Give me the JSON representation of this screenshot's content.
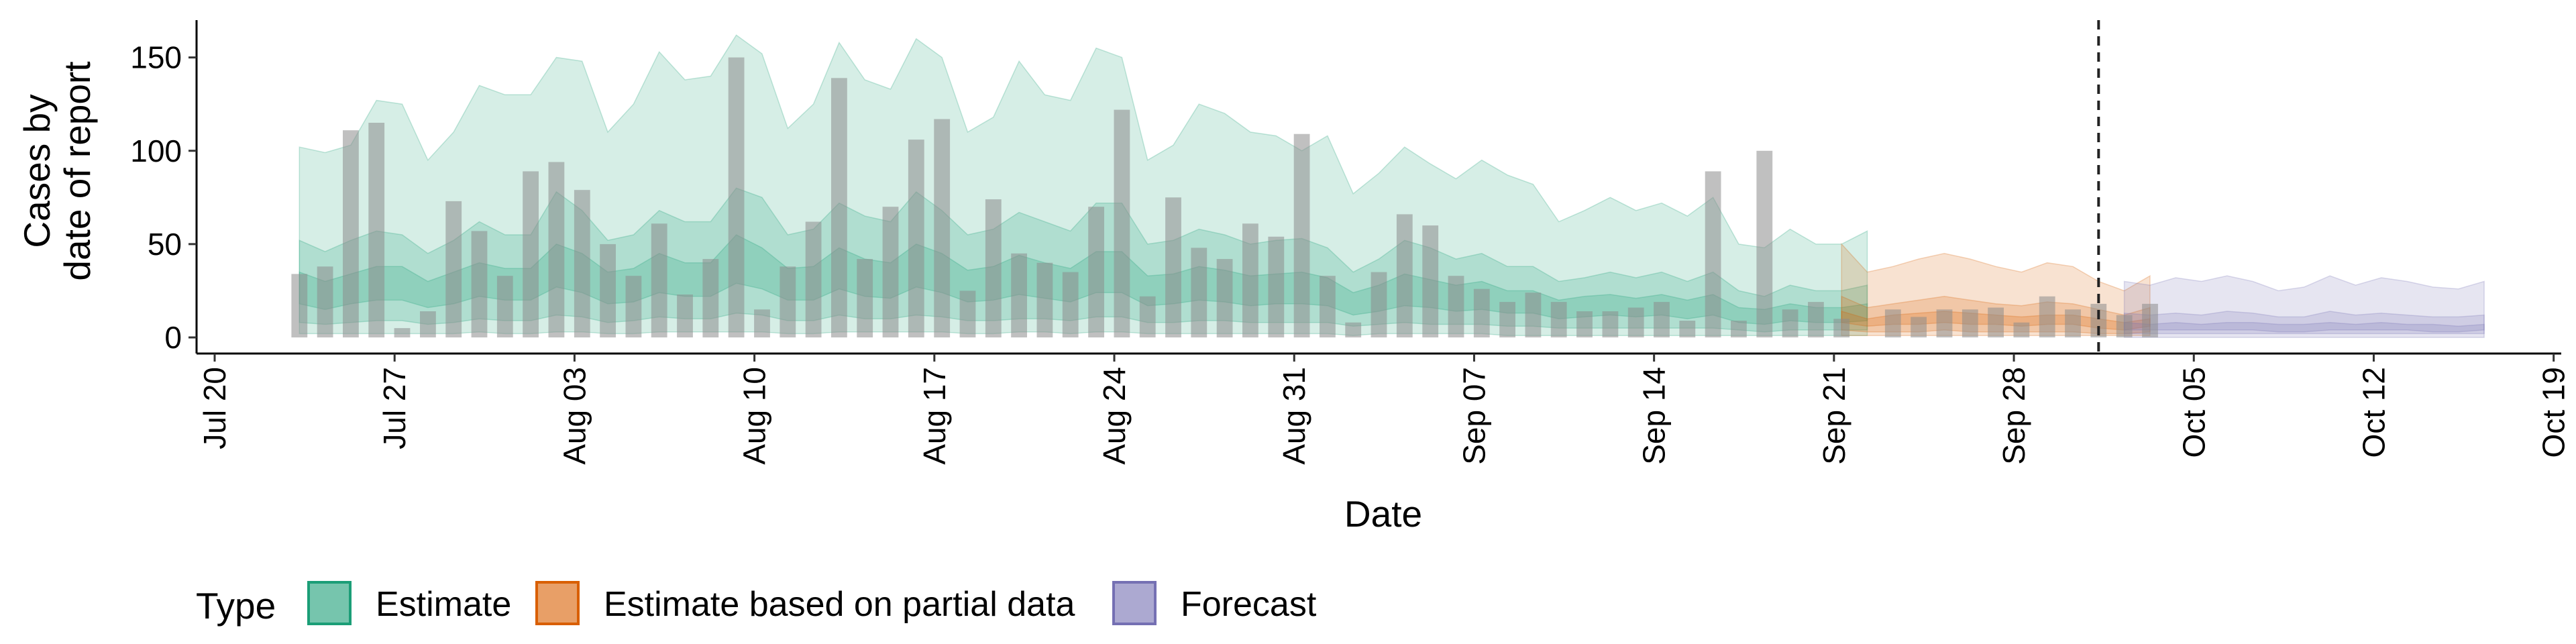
{
  "chart_data": {
    "type": "area",
    "xlabel": "Date",
    "ylabel_lines": [
      "Cases by",
      "date of report"
    ],
    "ylim": [
      0,
      170
    ],
    "y_ticks": [
      0,
      50,
      100,
      150
    ],
    "x_ticks": [
      "Jul 20",
      "Jul 27",
      "Aug 03",
      "Aug 10",
      "Aug 17",
      "Aug 24",
      "Aug 31",
      "Sep 07",
      "Sep 14",
      "Sep 21",
      "Sep 28",
      "Oct 05",
      "Oct 12",
      "Oct 19"
    ],
    "x_start": "2020-07-20",
    "x_end": "2020-10-20",
    "bar_dates_start": "2020-07-24",
    "bars": [
      34,
      38,
      111,
      115,
      5,
      14,
      73,
      57,
      33,
      89,
      94,
      79,
      50,
      33,
      61,
      23,
      42,
      150,
      15,
      38,
      62,
      139,
      42,
      70,
      106,
      117,
      25,
      74,
      45,
      40,
      35,
      70,
      122,
      22,
      75,
      48,
      42,
      61,
      54,
      109,
      33,
      8,
      35,
      66,
      60,
      33,
      26,
      19,
      24,
      19,
      14,
      14,
      16,
      19,
      9,
      89,
      9,
      100,
      15,
      19,
      10,
      0,
      15,
      11,
      15,
      15,
      16,
      8,
      22,
      15,
      18,
      12,
      18
    ],
    "vline_date": "2020-10-02",
    "bands": [
      {
        "type": "Estimate",
        "start": "2020-07-24",
        "upper90": [
          102,
          99,
          103,
          127,
          125,
          95,
          110,
          135,
          130,
          130,
          150,
          148,
          110,
          125,
          153,
          138,
          140,
          162,
          152,
          112,
          125,
          158,
          138,
          133,
          160,
          150,
          110,
          118,
          148,
          130,
          127,
          155,
          150,
          95,
          103,
          125,
          120,
          110,
          108,
          100,
          108,
          77,
          88,
          102,
          93,
          85,
          95,
          87,
          82,
          62,
          68,
          75,
          68,
          72,
          65,
          75,
          50,
          48,
          58,
          50,
          50,
          57
        ],
        "upper50": [
          52,
          46,
          52,
          57,
          55,
          45,
          52,
          62,
          55,
          55,
          78,
          68,
          52,
          55,
          68,
          62,
          62,
          80,
          75,
          55,
          58,
          72,
          65,
          62,
          78,
          68,
          55,
          58,
          67,
          62,
          57,
          72,
          72,
          50,
          52,
          58,
          55,
          50,
          52,
          53,
          48,
          35,
          42,
          52,
          48,
          42,
          45,
          38,
          38,
          30,
          32,
          35,
          32,
          35,
          30,
          35,
          25,
          22,
          28,
          25,
          25,
          28
        ],
        "upper20": [
          35,
          30,
          34,
          38,
          38,
          30,
          35,
          40,
          37,
          37,
          50,
          45,
          35,
          37,
          45,
          40,
          40,
          55,
          48,
          37,
          38,
          48,
          42,
          40,
          50,
          45,
          36,
          38,
          44,
          40,
          37,
          46,
          46,
          33,
          34,
          38,
          36,
          33,
          34,
          35,
          32,
          24,
          28,
          34,
          31,
          28,
          30,
          25,
          25,
          20,
          22,
          23,
          21,
          23,
          20,
          23,
          16,
          15,
          18,
          16,
          16,
          18
        ],
        "lower20": [
          18,
          15,
          18,
          20,
          20,
          16,
          18,
          22,
          20,
          20,
          27,
          24,
          18,
          19,
          24,
          22,
          22,
          29,
          26,
          20,
          20,
          26,
          22,
          21,
          27,
          24,
          19,
          20,
          23,
          21,
          19,
          24,
          24,
          17,
          18,
          20,
          19,
          17,
          18,
          18,
          17,
          12,
          14,
          17,
          16,
          14,
          15,
          13,
          13,
          10,
          11,
          12,
          11,
          12,
          10,
          12,
          8,
          7,
          9,
          8,
          8,
          9
        ],
        "lower50": [
          8,
          7,
          8,
          9,
          9,
          7,
          8,
          10,
          9,
          9,
          12,
          11,
          8,
          9,
          11,
          10,
          10,
          13,
          12,
          9,
          9,
          12,
          10,
          10,
          12,
          11,
          9,
          9,
          10,
          10,
          9,
          11,
          11,
          8,
          8,
          9,
          9,
          8,
          8,
          8,
          8,
          6,
          7,
          8,
          7,
          7,
          7,
          6,
          6,
          5,
          5,
          5,
          5,
          5,
          5,
          5,
          4,
          3,
          4,
          4,
          4,
          4
        ],
        "lower90": [
          2,
          2,
          2,
          2,
          2,
          2,
          2,
          3,
          2,
          2,
          3,
          3,
          2,
          2,
          3,
          3,
          3,
          3,
          3,
          2,
          2,
          3,
          3,
          3,
          3,
          3,
          2,
          2,
          3,
          3,
          2,
          3,
          3,
          2,
          2,
          2,
          2,
          2,
          2,
          2,
          2,
          1,
          2,
          2,
          2,
          2,
          2,
          1,
          1,
          1,
          1,
          1,
          1,
          1,
          1,
          1,
          1,
          1,
          1,
          1,
          1,
          1
        ]
      },
      {
        "type": "Estimate based on partial data",
        "start": "2020-09-22",
        "upper90": [
          50,
          35,
          38,
          42,
          45,
          42,
          38,
          35,
          40,
          38,
          30,
          25,
          33
        ],
        "upper50": [
          22,
          16,
          18,
          20,
          22,
          20,
          18,
          17,
          19,
          18,
          15,
          12,
          16
        ],
        "upper20": [
          14,
          10,
          12,
          13,
          14,
          13,
          12,
          11,
          12,
          12,
          10,
          8,
          10
        ],
        "lower20": [
          8,
          6,
          7,
          7,
          8,
          7,
          7,
          6,
          7,
          7,
          5,
          4,
          6
        ],
        "lower50": [
          4,
          3,
          3,
          3,
          4,
          3,
          3,
          3,
          3,
          3,
          2,
          2,
          3
        ],
        "lower90": [
          1,
          1,
          1,
          1,
          1,
          1,
          1,
          1,
          1,
          1,
          1,
          1,
          1
        ]
      },
      {
        "type": "Forecast",
        "start": "2020-10-03",
        "upper90": [
          30,
          28,
          32,
          30,
          33,
          30,
          25,
          27,
          33,
          28,
          32,
          30,
          27,
          26,
          30
        ],
        "upper50": [
          13,
          12,
          13,
          12,
          14,
          13,
          11,
          11,
          14,
          12,
          13,
          12,
          11,
          11,
          12
        ],
        "upper20": [
          8,
          7,
          8,
          7,
          8,
          8,
          7,
          7,
          8,
          7,
          8,
          7,
          7,
          6,
          7
        ],
        "lower20": [
          4,
          4,
          4,
          4,
          4,
          4,
          3,
          3,
          4,
          4,
          4,
          4,
          3,
          3,
          4
        ],
        "lower50": [
          2,
          2,
          2,
          2,
          2,
          2,
          2,
          2,
          2,
          2,
          2,
          2,
          2,
          2,
          2
        ],
        "lower90": [
          0,
          0,
          0,
          0,
          0,
          0,
          0,
          0,
          0,
          0,
          0,
          0,
          0,
          0,
          0
        ]
      }
    ],
    "legend": {
      "title": "Type",
      "position": "bottom-left",
      "items": [
        {
          "label": "Estimate",
          "fill": "#1b9e77",
          "stroke": "#1b9e77"
        },
        {
          "label": "Estimate based on partial data",
          "fill": "#d95f02",
          "stroke": "#d95f02"
        },
        {
          "label": "Forecast",
          "fill": "#7570b3",
          "stroke": "#7570b3"
        }
      ]
    },
    "colors": {
      "Estimate": "#1b9e77",
      "Estimate based on partial data": "#d95f02",
      "Forecast": "#7570b3",
      "bars": "#8c8c8c"
    },
    "grid": false
  }
}
